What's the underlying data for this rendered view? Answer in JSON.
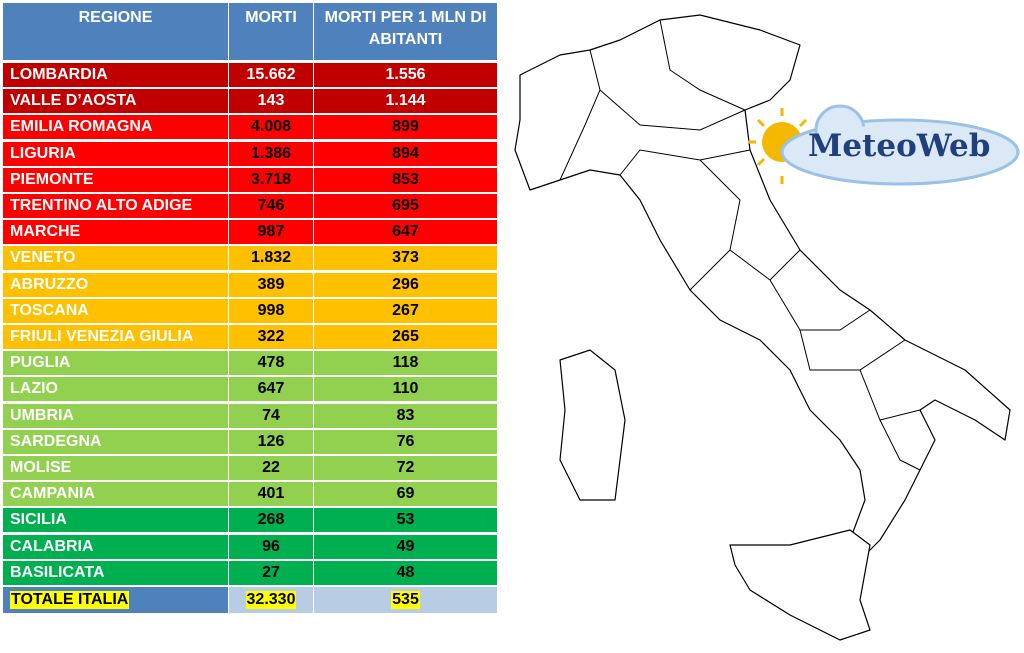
{
  "table": {
    "header": [
      "REGIONE",
      "MORTI",
      "MORTI PER 1 MLN DI ABITANTI"
    ],
    "rows": [
      [
        "LOMBARDIA",
        "15.662",
        "1.556"
      ],
      [
        "VALLE D’AOSTA",
        "143",
        "1.144"
      ],
      [
        "EMILIA ROMAGNA",
        "4.008",
        "899"
      ],
      [
        "LIGURIA",
        "1.386",
        "894"
      ],
      [
        "PIEMONTE",
        "3.718",
        "853"
      ],
      [
        "TRENTINO ALTO ADIGE",
        "746",
        "695"
      ],
      [
        "MARCHE",
        "987",
        "647"
      ],
      [
        "VENETO",
        "1.832",
        "373"
      ],
      [
        "ABRUZZO",
        "389",
        "296"
      ],
      [
        "TOSCANA",
        "998",
        "267"
      ],
      [
        "FRIULI VENEZIA GIULIA",
        "322",
        "265"
      ],
      [
        "PUGLIA",
        "478",
        "118"
      ],
      [
        "LAZIO",
        "647",
        "110"
      ],
      [
        "UMBRIA",
        "74",
        "83"
      ],
      [
        "SARDEGNA",
        "126",
        "76"
      ],
      [
        "MOLISE",
        "22",
        "72"
      ],
      [
        "CAMPANIA",
        "401",
        "69"
      ],
      [
        "SICILIA",
        "268",
        "53"
      ],
      [
        "CALABRIA",
        "96",
        "49"
      ],
      [
        "BASILICATA",
        "27",
        "48"
      ]
    ],
    "total": [
      "TOTALE ITALIA",
      "32.330",
      "535"
    ]
  },
  "logo": "MeteoWeb"
}
